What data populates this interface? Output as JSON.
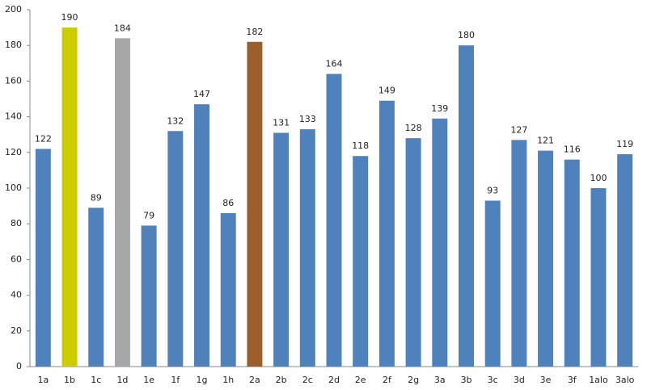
{
  "chart_data": {
    "type": "bar",
    "categories": [
      "1a",
      "1b",
      "1c",
      "1d",
      "1e",
      "1f",
      "1g",
      "1h",
      "2a",
      "2b",
      "2c",
      "2d",
      "2e",
      "2f",
      "2g",
      "3a",
      "3b",
      "3c",
      "3d",
      "3e",
      "3f",
      "1alo",
      "3alo"
    ],
    "values": [
      122,
      190,
      89,
      184,
      79,
      132,
      147,
      86,
      182,
      131,
      133,
      164,
      118,
      149,
      128,
      139,
      180,
      93,
      127,
      121,
      116,
      100,
      119
    ],
    "colors": [
      "#4f81bd",
      "#cccc00",
      "#4f81bd",
      "#a6a6a6",
      "#4f81bd",
      "#4f81bd",
      "#4f81bd",
      "#4f81bd",
      "#9a5f2a",
      "#4f81bd",
      "#4f81bd",
      "#4f81bd",
      "#4f81bd",
      "#4f81bd",
      "#4f81bd",
      "#4f81bd",
      "#4f81bd",
      "#4f81bd",
      "#4f81bd",
      "#4f81bd",
      "#4f81bd",
      "#4f81bd",
      "#4f81bd"
    ],
    "ylim": [
      0,
      200
    ],
    "yticks": [
      0,
      20,
      40,
      60,
      80,
      100,
      120,
      140,
      160,
      180,
      200
    ],
    "grid": false
  }
}
